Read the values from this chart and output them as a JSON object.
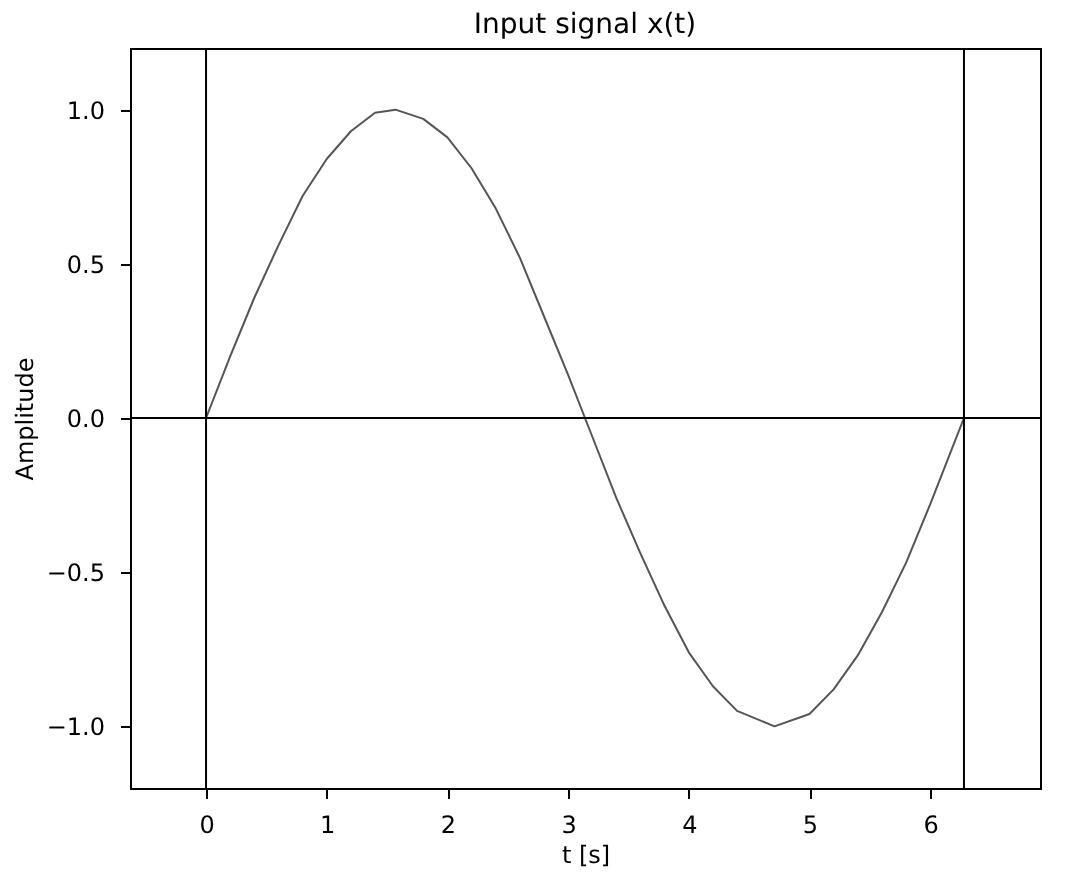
{
  "chart_data": {
    "type": "line",
    "title": "Input signal x(t)",
    "xlabel": "t [s]",
    "ylabel": "Amplitude",
    "x": [
      0,
      0.2,
      0.4,
      0.6,
      0.8,
      1.0,
      1.2,
      1.4,
      1.57,
      1.8,
      2.0,
      2.2,
      2.4,
      2.6,
      2.8,
      3.0,
      3.2,
      3.4,
      3.6,
      3.8,
      4.0,
      4.2,
      4.4,
      4.71,
      5.0,
      5.2,
      5.4,
      5.6,
      5.8,
      6.0,
      6.2,
      6.28
    ],
    "series": [
      {
        "color": "#555555",
        "values": [
          0,
          0.2,
          0.39,
          0.56,
          0.72,
          0.84,
          0.93,
          0.99,
          1.0,
          0.97,
          0.91,
          0.81,
          0.68,
          0.52,
          0.33,
          0.14,
          -0.06,
          -0.26,
          -0.44,
          -0.61,
          -0.76,
          -0.87,
          -0.95,
          -1.0,
          -0.96,
          -0.88,
          -0.77,
          -0.63,
          -0.47,
          -0.28,
          -0.08,
          0
        ]
      }
    ],
    "xlim": [
      -0.63,
      6.91
    ],
    "ylim": [
      -1.2,
      1.2
    ],
    "xticks": [
      0,
      1,
      2,
      3,
      4,
      5,
      6
    ],
    "yticks": [
      {
        "value": -1,
        "label": "−1.0"
      },
      {
        "value": -0.5,
        "label": "−0.5"
      },
      {
        "value": 0,
        "label": "0.0"
      },
      {
        "value": 0.5,
        "label": "0.5"
      },
      {
        "value": 1,
        "label": "1.0"
      }
    ],
    "ref_lines": [
      {
        "axis": "x",
        "value": 0,
        "color": "#000000"
      },
      {
        "axis": "x",
        "value": 6.28,
        "color": "#000000"
      },
      {
        "axis": "y",
        "value": 0,
        "color": "#000000"
      }
    ],
    "grid": false,
    "marker": "none",
    "line_style": "solid"
  }
}
